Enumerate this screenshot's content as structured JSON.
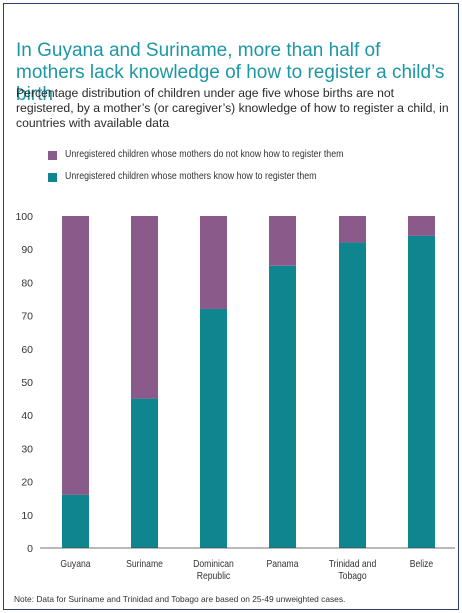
{
  "title": "In Guyana and Suriname, more than half of mothers lack knowledge of how to register a child’s birth",
  "subtitle": "Percentage distribution of children under age five whose births are not registered, by a mother’s (or caregiver’s) knowledge of how to register a child, in countries with available data",
  "note": "Note: Data for Suriname and Trinidad and Tobago are based on 25-49 unweighted cases.",
  "colors": {
    "do_not_know": "#8a5b8a",
    "know": "#0f8590",
    "frame": "#2b3f6b",
    "title": "#1e97a5"
  },
  "chart_data": {
    "type": "bar",
    "stacked": true,
    "categories": [
      "Guyana",
      "Suriname",
      "Dominican Republic",
      "Panama",
      "Trinidad and Tobago",
      "Belize"
    ],
    "series": [
      {
        "name": "Unregistered children whose mothers know how to register them",
        "values": [
          16,
          45,
          72,
          85,
          92,
          94
        ]
      },
      {
        "name": "Unregistered children whose mothers do not know how to register them",
        "values": [
          84,
          55,
          28,
          15,
          8,
          6
        ]
      }
    ],
    "legend": [
      "Unregistered children whose mothers do not know how to register them",
      "Unregistered children whose mothers know how to register them"
    ],
    "yticks": [
      0,
      10,
      20,
      30,
      40,
      50,
      60,
      70,
      80,
      90,
      100
    ],
    "ylim": [
      0,
      100
    ],
    "grid": false,
    "legend_position": "top-left"
  }
}
